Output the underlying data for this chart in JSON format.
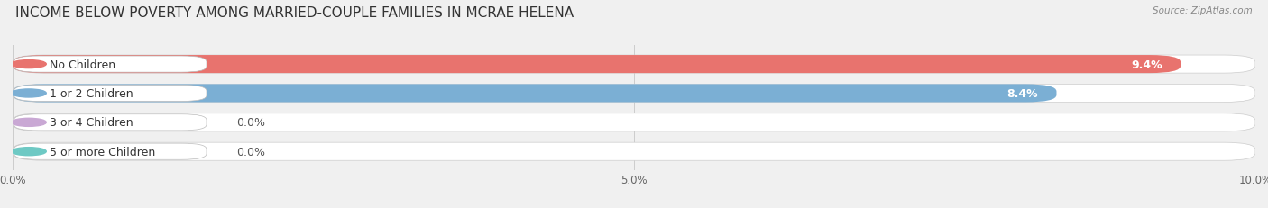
{
  "title": "INCOME BELOW POVERTY AMONG MARRIED-COUPLE FAMILIES IN MCRAE HELENA",
  "source": "Source: ZipAtlas.com",
  "categories": [
    "No Children",
    "1 or 2 Children",
    "3 or 4 Children",
    "5 or more Children"
  ],
  "values": [
    9.4,
    8.4,
    0.0,
    0.0
  ],
  "bar_colors": [
    "#e8736e",
    "#7bafd4",
    "#c9a8d4",
    "#6ec9c4"
  ],
  "xlim": [
    0,
    10.0
  ],
  "xticks": [
    0.0,
    5.0,
    10.0
  ],
  "xtick_labels": [
    "0.0%",
    "5.0%",
    "10.0%"
  ],
  "bar_height": 0.62,
  "background_color": "#f0f0f0",
  "bar_bg_color": "#e2e2e2",
  "title_fontsize": 11,
  "label_fontsize": 9,
  "value_fontsize": 9
}
